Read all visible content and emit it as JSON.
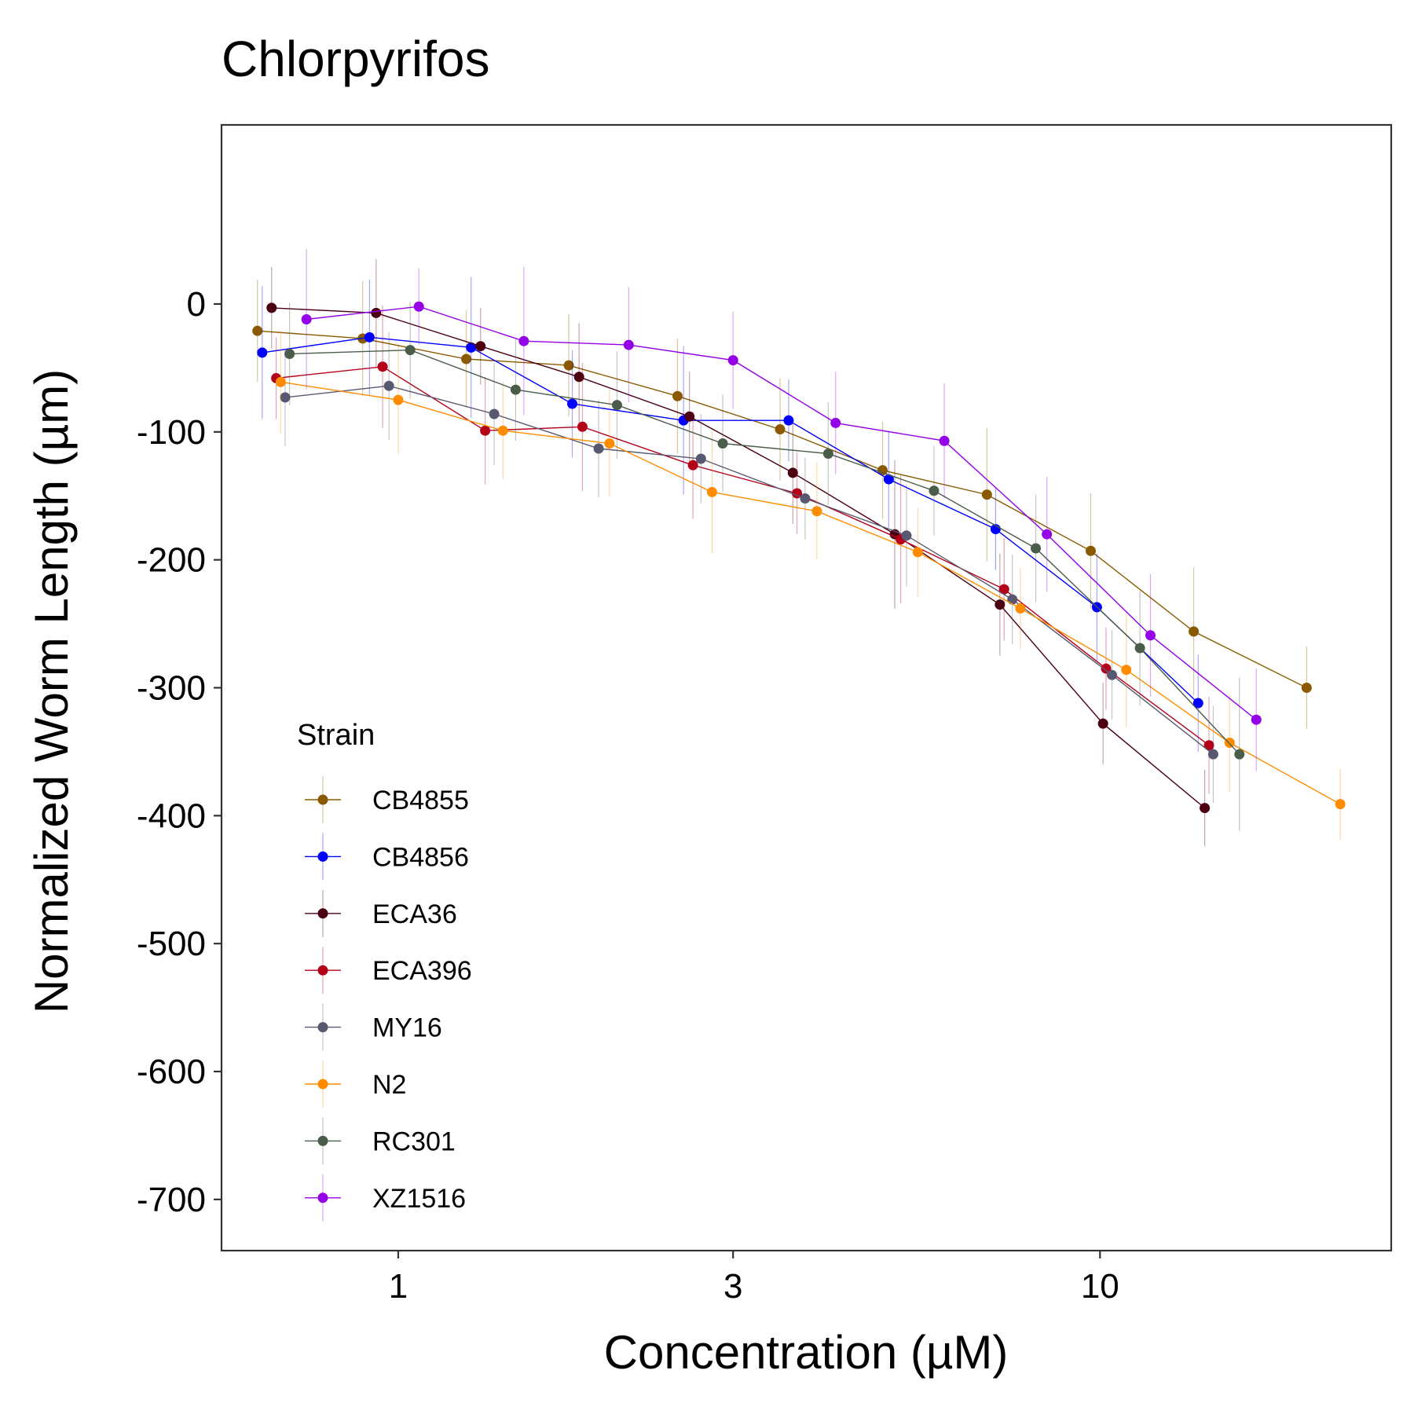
{
  "chart_data": {
    "type": "line",
    "title": "Chlorpyrifos",
    "xlabel": "Concentration (µM)",
    "ylabel": "Normalized Worm Length (µm)",
    "x_scale": "log",
    "xlim": [
      0.56,
      26
    ],
    "ylim": [
      -740,
      140
    ],
    "x_ticks": [
      1,
      3,
      10
    ],
    "x_tick_labels": [
      "1",
      "3",
      "10"
    ],
    "y_ticks": [
      0,
      -100,
      -200,
      -300,
      -400,
      -500,
      -600,
      -700
    ],
    "y_tick_labels": [
      "0",
      "-100",
      "-200",
      "-300",
      "-400",
      "-500",
      "-600",
      "-700"
    ],
    "grid": false,
    "legend": {
      "title": "Strain",
      "position": "bottom-left"
    },
    "series": [
      {
        "name": "CB4855",
        "color": "#8B5A00",
        "x": [
          0.63,
          0.89,
          1.25,
          1.75,
          2.5,
          3.5,
          4.9,
          6.9,
          9.7,
          13.6,
          19.7
        ],
        "y": [
          -21,
          -27,
          -43,
          -48,
          -72,
          -98,
          -130,
          -149,
          -193,
          -256,
          -300
        ],
        "err": [
          40,
          45,
          38,
          40,
          45,
          40,
          38,
          52,
          45,
          50,
          32
        ]
      },
      {
        "name": "CB4856",
        "color": "#0000FF",
        "x": [
          0.64,
          0.91,
          1.27,
          1.77,
          2.55,
          3.6,
          5.0,
          7.1,
          9.9,
          13.8
        ],
        "y": [
          -38,
          -26,
          -34,
          -78,
          -91,
          -91,
          -137,
          -176,
          -237,
          -312
        ],
        "err": [
          52,
          45,
          55,
          42,
          58,
          32,
          38,
          32,
          42,
          38
        ]
      },
      {
        "name": "ECA36",
        "color": "#4A0010",
        "x": [
          0.66,
          0.93,
          1.31,
          1.81,
          2.6,
          3.65,
          5.1,
          7.2,
          10.1,
          14.1
        ],
        "y": [
          -3,
          -7,
          -33,
          -57,
          -88,
          -132,
          -180,
          -235,
          -328,
          -394
        ],
        "err": [
          32,
          42,
          30,
          42,
          35,
          40,
          58,
          40,
          32,
          30
        ]
      },
      {
        "name": "ECA396",
        "color": "#B5001A",
        "x": [
          0.67,
          0.95,
          1.33,
          1.83,
          2.63,
          3.7,
          5.2,
          7.3,
          10.2,
          14.3
        ],
        "y": [
          -58,
          -49,
          -99,
          -96,
          -126,
          -148,
          -184,
          -223,
          -285,
          -345
        ],
        "err": [
          32,
          48,
          42,
          50,
          42,
          32,
          50,
          40,
          32,
          38
        ]
      },
      {
        "name": "MY16",
        "color": "#585870",
        "x": [
          0.69,
          0.97,
          1.37,
          1.93,
          2.7,
          3.8,
          5.3,
          7.5,
          10.4,
          14.5
        ],
        "y": [
          -73,
          -64,
          -86,
          -113,
          -121,
          -152,
          -181,
          -231,
          -290,
          -352
        ],
        "err": [
          38,
          42,
          40,
          38,
          35,
          32,
          40,
          35,
          35,
          38
        ]
      },
      {
        "name": "N2",
        "color": "#FF8C00",
        "x": [
          0.68,
          1.0,
          1.41,
          2.0,
          2.8,
          3.95,
          5.5,
          7.7,
          10.9,
          15.3,
          22.0
        ],
        "y": [
          -61,
          -75,
          -99,
          -109,
          -147,
          -162,
          -194,
          -238,
          -286,
          -343,
          -391
        ],
        "err": [
          40,
          42,
          38,
          42,
          48,
          38,
          35,
          32,
          45,
          38,
          28
        ]
      },
      {
        "name": "RC301",
        "color": "#4A5D4A",
        "x": [
          0.7,
          1.04,
          1.47,
          2.05,
          2.9,
          4.1,
          5.8,
          8.1,
          11.4,
          15.8
        ],
        "y": [
          -39,
          -36,
          -67,
          -79,
          -109,
          -117,
          -146,
          -191,
          -269,
          -352
        ],
        "err": [
          40,
          38,
          40,
          42,
          38,
          40,
          35,
          42,
          45,
          60
        ]
      },
      {
        "name": "XZ1516",
        "color": "#9400E8",
        "x": [
          0.74,
          1.07,
          1.51,
          2.13,
          3.0,
          4.2,
          6.0,
          8.4,
          11.8,
          16.7
        ],
        "y": [
          -12,
          -2,
          -29,
          -32,
          -44,
          -93,
          -107,
          -180,
          -259,
          -325
        ],
        "err": [
          55,
          30,
          58,
          45,
          38,
          40,
          45,
          45,
          48,
          40
        ]
      }
    ]
  }
}
